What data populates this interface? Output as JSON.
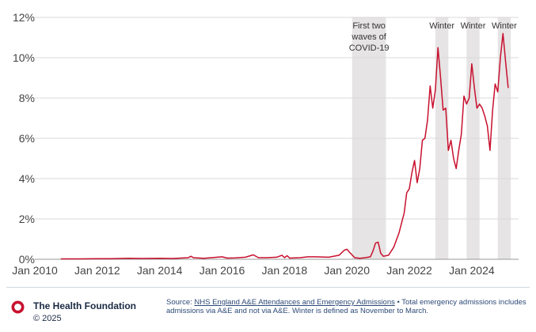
{
  "chart_data": {
    "type": "line",
    "title": "",
    "xlabel": "",
    "ylabel": "",
    "x_ticks": [
      "Jan 2010",
      "Jan 2012",
      "Jan 2014",
      "Jan 2016",
      "Jan 2018",
      "Jan 2020",
      "Jan 2022",
      "Jan 2024"
    ],
    "y_ticks": [
      "0%",
      "2%",
      "4%",
      "6%",
      "8%",
      "10%",
      "12%"
    ],
    "xlim": [
      "2010-01",
      "2025-07"
    ],
    "ylim": [
      0,
      12
    ],
    "grid": "horizontal",
    "line_color": "#c8102e",
    "shade_color": "#e6e4e4",
    "shaded_periods": [
      {
        "label": "First two waves of COVID-19",
        "label_lines": [
          "First two",
          "waves of",
          "COVID-19"
        ],
        "start": "2020-03",
        "end": "2021-04"
      },
      {
        "label": "Winter",
        "label_lines": [
          "Winter"
        ],
        "start": "2022-11",
        "end": "2023-04"
      },
      {
        "label": "Winter",
        "label_lines": [
          "Winter"
        ],
        "start": "2023-11",
        "end": "2024-04"
      },
      {
        "label": "Winter",
        "label_lines": [
          "Winter"
        ],
        "start": "2024-11",
        "end": "2025-04"
      }
    ],
    "series": [
      {
        "values": [
          [
            "2010-11",
            0.02
          ],
          [
            "2011-06",
            0.02
          ],
          [
            "2012-01",
            0.03
          ],
          [
            "2012-06",
            0.03
          ],
          [
            "2013-01",
            0.05
          ],
          [
            "2013-06",
            0.04
          ],
          [
            "2014-01",
            0.05
          ],
          [
            "2014-06",
            0.04
          ],
          [
            "2014-12",
            0.08
          ],
          [
            "2015-01",
            0.15
          ],
          [
            "2015-02",
            0.08
          ],
          [
            "2015-06",
            0.05
          ],
          [
            "2016-01",
            0.12
          ],
          [
            "2016-03",
            0.06
          ],
          [
            "2016-06",
            0.07
          ],
          [
            "2016-10",
            0.1
          ],
          [
            "2017-01",
            0.22
          ],
          [
            "2017-03",
            0.08
          ],
          [
            "2017-06",
            0.08
          ],
          [
            "2017-10",
            0.1
          ],
          [
            "2017-12",
            0.2
          ],
          [
            "2018-01",
            0.08
          ],
          [
            "2018-02",
            0.18
          ],
          [
            "2018-03",
            0.06
          ],
          [
            "2018-07",
            0.08
          ],
          [
            "2018-10",
            0.12
          ],
          [
            "2019-01",
            0.12
          ],
          [
            "2019-06",
            0.1
          ],
          [
            "2019-10",
            0.2
          ],
          [
            "2019-12",
            0.45
          ],
          [
            "2020-01",
            0.5
          ],
          [
            "2020-02",
            0.35
          ],
          [
            "2020-04",
            0.08
          ],
          [
            "2020-06",
            0.05
          ],
          [
            "2020-08",
            0.08
          ],
          [
            "2020-10",
            0.12
          ],
          [
            "2020-11",
            0.4
          ],
          [
            "2020-12",
            0.8
          ],
          [
            "2021-01",
            0.85
          ],
          [
            "2021-02",
            0.3
          ],
          [
            "2021-03",
            0.15
          ],
          [
            "2021-05",
            0.2
          ],
          [
            "2021-07",
            0.6
          ],
          [
            "2021-09",
            1.3
          ],
          [
            "2021-11",
            2.3
          ],
          [
            "2021-12",
            3.3
          ],
          [
            "2022-01",
            3.5
          ],
          [
            "2022-02",
            4.3
          ],
          [
            "2022-03",
            4.9
          ],
          [
            "2022-04",
            3.8
          ],
          [
            "2022-05",
            4.5
          ],
          [
            "2022-06",
            5.9
          ],
          [
            "2022-07",
            6.0
          ],
          [
            "2022-08",
            6.9
          ],
          [
            "2022-09",
            8.6
          ],
          [
            "2022-10",
            7.5
          ],
          [
            "2022-11",
            8.4
          ],
          [
            "2022-12",
            10.5
          ],
          [
            "2023-01",
            9.0
          ],
          [
            "2023-02",
            7.4
          ],
          [
            "2023-03",
            7.5
          ],
          [
            "2023-04",
            5.4
          ],
          [
            "2023-05",
            5.9
          ],
          [
            "2023-06",
            5.0
          ],
          [
            "2023-07",
            4.5
          ],
          [
            "2023-08",
            5.4
          ],
          [
            "2023-09",
            6.2
          ],
          [
            "2023-10",
            8.1
          ],
          [
            "2023-11",
            7.7
          ],
          [
            "2023-12",
            8.0
          ],
          [
            "2024-01",
            9.7
          ],
          [
            "2024-02",
            8.5
          ],
          [
            "2024-03",
            7.5
          ],
          [
            "2024-04",
            7.7
          ],
          [
            "2024-05",
            7.5
          ],
          [
            "2024-06",
            7.1
          ],
          [
            "2024-07",
            6.6
          ],
          [
            "2024-08",
            5.4
          ],
          [
            "2024-09",
            7.4
          ],
          [
            "2024-10",
            8.7
          ],
          [
            "2024-11",
            8.3
          ],
          [
            "2024-12",
            10.0
          ],
          [
            "2025-01",
            11.2
          ],
          [
            "2025-02",
            9.8
          ],
          [
            "2025-03",
            8.5
          ]
        ]
      }
    ]
  },
  "footer": {
    "org_name": "The Health Foundation",
    "copyright": "© 2025",
    "source_prefix": "Source: ",
    "source_link": "NHS England A&E Attendances and Emergency Admissions",
    "source_note": " • Total emergency admissions includes admissions via A&E and not via A&E. Winter is defined as November to March."
  },
  "colors": {
    "brand_red": "#c8102e",
    "footer_text": "#2d4a77",
    "org_text": "#1a2a44"
  },
  "icons": {
    "logo": "health-foundation-ring-logo"
  }
}
